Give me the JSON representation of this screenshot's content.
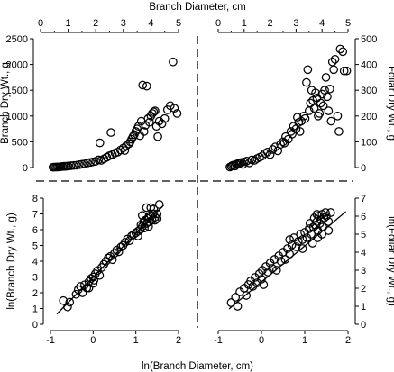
{
  "chart_data": {
    "type": "scatter",
    "top_xlabel": "Branch Diameter, cm",
    "bottom_xlabel": "ln(Branch Diameter, cm)",
    "panels": [
      {
        "id": "top_left",
        "ylabel": "Branch Dry Wt., g",
        "xlim": [
          0,
          5
        ],
        "ylim": [
          0,
          2500
        ],
        "xticks": [
          0,
          1,
          2,
          3,
          4,
          5
        ],
        "yticks": [
          0,
          500,
          1000,
          1500,
          2000,
          2500
        ],
        "points": [
          [
            0.45,
            5
          ],
          [
            0.5,
            10
          ],
          [
            0.55,
            8
          ],
          [
            0.6,
            12
          ],
          [
            0.65,
            10
          ],
          [
            0.7,
            15
          ],
          [
            0.75,
            18
          ],
          [
            0.8,
            20
          ],
          [
            0.85,
            25
          ],
          [
            0.9,
            22
          ],
          [
            0.95,
            28
          ],
          [
            1.0,
            30
          ],
          [
            1.1,
            35
          ],
          [
            1.2,
            40
          ],
          [
            1.3,
            45
          ],
          [
            1.4,
            55
          ],
          [
            1.5,
            65
          ],
          [
            1.6,
            70
          ],
          [
            1.7,
            90
          ],
          [
            1.8,
            100
          ],
          [
            1.9,
            110
          ],
          [
            2.0,
            120
          ],
          [
            2.1,
            150
          ],
          [
            2.15,
            480
          ],
          [
            2.2,
            140
          ],
          [
            2.3,
            170
          ],
          [
            2.4,
            200
          ],
          [
            2.5,
            230
          ],
          [
            2.55,
            680
          ],
          [
            2.6,
            250
          ],
          [
            2.7,
            280
          ],
          [
            2.8,
            300
          ],
          [
            2.9,
            340
          ],
          [
            3.0,
            380
          ],
          [
            3.05,
            330
          ],
          [
            3.1,
            420
          ],
          [
            3.2,
            460
          ],
          [
            3.25,
            500
          ],
          [
            3.3,
            550
          ],
          [
            3.35,
            600
          ],
          [
            3.4,
            640
          ],
          [
            3.45,
            700
          ],
          [
            3.5,
            750
          ],
          [
            3.55,
            800
          ],
          [
            3.6,
            620
          ],
          [
            3.65,
            900
          ],
          [
            3.7,
            1600
          ],
          [
            3.75,
            700
          ],
          [
            3.8,
            820
          ],
          [
            3.85,
            1580
          ],
          [
            3.9,
            950
          ],
          [
            3.95,
            880
          ],
          [
            4.0,
            1000
          ],
          [
            4.05,
            1050
          ],
          [
            4.1,
            1080
          ],
          [
            4.15,
            1100
          ],
          [
            4.2,
            800
          ],
          [
            4.25,
            600
          ],
          [
            4.3,
            900
          ],
          [
            4.4,
            850
          ],
          [
            4.5,
            950
          ],
          [
            4.6,
            1120
          ],
          [
            4.7,
            1200
          ],
          [
            4.8,
            2050
          ],
          [
            4.85,
            1150
          ],
          [
            4.95,
            1050
          ]
        ]
      },
      {
        "id": "top_right",
        "ylabel": "Foliar Dry Wt., g",
        "xlim": [
          0,
          5
        ],
        "ylim": [
          0,
          500
        ],
        "xticks": [
          0,
          1,
          2,
          3,
          4,
          5
        ],
        "yticks": [
          0,
          100,
          200,
          300,
          400,
          500
        ],
        "points": [
          [
            0.45,
            2
          ],
          [
            0.5,
            5
          ],
          [
            0.55,
            8
          ],
          [
            0.6,
            10
          ],
          [
            0.65,
            6
          ],
          [
            0.7,
            12
          ],
          [
            0.75,
            15
          ],
          [
            0.8,
            14
          ],
          [
            0.85,
            18
          ],
          [
            0.9,
            20
          ],
          [
            0.95,
            12
          ],
          [
            1.0,
            22
          ],
          [
            1.1,
            25
          ],
          [
            1.2,
            18
          ],
          [
            1.3,
            30
          ],
          [
            1.4,
            28
          ],
          [
            1.5,
            35
          ],
          [
            1.6,
            40
          ],
          [
            1.7,
            45
          ],
          [
            1.8,
            55
          ],
          [
            1.9,
            60
          ],
          [
            2.0,
            50
          ],
          [
            2.1,
            70
          ],
          [
            2.2,
            80
          ],
          [
            2.3,
            65
          ],
          [
            2.4,
            90
          ],
          [
            2.5,
            100
          ],
          [
            2.55,
            95
          ],
          [
            2.6,
            120
          ],
          [
            2.7,
            110
          ],
          [
            2.8,
            140
          ],
          [
            2.85,
            130
          ],
          [
            2.9,
            160
          ],
          [
            3.0,
            150
          ],
          [
            3.05,
            195
          ],
          [
            3.1,
            175
          ],
          [
            3.15,
            140
          ],
          [
            3.2,
            180
          ],
          [
            3.3,
            200
          ],
          [
            3.35,
            190
          ],
          [
            3.4,
            330
          ],
          [
            3.45,
            380
          ],
          [
            3.5,
            220
          ],
          [
            3.55,
            250
          ],
          [
            3.6,
            300
          ],
          [
            3.65,
            260
          ],
          [
            3.7,
            230
          ],
          [
            3.75,
            290
          ],
          [
            3.8,
            270
          ],
          [
            3.85,
            200
          ],
          [
            3.9,
            210
          ],
          [
            3.95,
            250
          ],
          [
            4.0,
            285
          ],
          [
            4.05,
            240
          ],
          [
            4.1,
            300
          ],
          [
            4.15,
            350
          ],
          [
            4.2,
            275
          ],
          [
            4.25,
            220
          ],
          [
            4.3,
            305
          ],
          [
            4.35,
            180
          ],
          [
            4.4,
            410
          ],
          [
            4.45,
            380
          ],
          [
            4.5,
            420
          ],
          [
            4.6,
            200
          ],
          [
            4.65,
            140
          ],
          [
            4.7,
            460
          ],
          [
            4.8,
            450
          ],
          [
            4.85,
            375
          ],
          [
            4.95,
            375
          ]
        ]
      },
      {
        "id": "bottom_left",
        "ylabel": "ln(Branch Dry Wt., g)",
        "xlim": [
          -1,
          2
        ],
        "ylim": [
          0,
          8
        ],
        "xticks": [
          -1,
          0,
          1,
          2
        ],
        "yticks": [
          0,
          1,
          2,
          3,
          4,
          5,
          6,
          7,
          8
        ],
        "fit_line": {
          "x": [
            -0.85,
            1.65
          ],
          "y": [
            0.65,
            7.55
          ]
        },
        "points": [
          [
            -0.7,
            1.5
          ],
          [
            -0.6,
            1.1
          ],
          [
            -0.55,
            1.4
          ],
          [
            -0.4,
            1.9
          ],
          [
            -0.35,
            2.2
          ],
          [
            -0.3,
            2.4
          ],
          [
            -0.25,
            2.0
          ],
          [
            -0.2,
            2.5
          ],
          [
            -0.15,
            2.3
          ],
          [
            -0.1,
            2.7
          ],
          [
            -0.05,
            2.9
          ],
          [
            0.0,
            3.0
          ],
          [
            0.02,
            2.8
          ],
          [
            0.05,
            3.2
          ],
          [
            0.1,
            3.4
          ],
          [
            0.15,
            3.1
          ],
          [
            0.2,
            3.6
          ],
          [
            0.25,
            3.8
          ],
          [
            0.3,
            4.0
          ],
          [
            0.4,
            4.3
          ],
          [
            0.45,
            4.1
          ],
          [
            0.5,
            4.5
          ],
          [
            0.55,
            4.7
          ],
          [
            0.6,
            4.6
          ],
          [
            0.65,
            4.9
          ],
          [
            0.7,
            5.0
          ],
          [
            0.75,
            5.2
          ],
          [
            0.8,
            5.4
          ],
          [
            0.85,
            5.3
          ],
          [
            0.9,
            5.6
          ],
          [
            0.95,
            5.7
          ],
          [
            1.0,
            5.8
          ],
          [
            1.05,
            5.9
          ],
          [
            1.1,
            6.0
          ],
          [
            1.12,
            6.3
          ],
          [
            1.15,
            6.2
          ],
          [
            1.18,
            6.5
          ],
          [
            1.2,
            6.1
          ],
          [
            1.22,
            6.6
          ],
          [
            1.25,
            6.4
          ],
          [
            1.28,
            6.7
          ],
          [
            1.3,
            6.8
          ],
          [
            1.32,
            6.5
          ],
          [
            1.35,
            6.9
          ],
          [
            1.38,
            6.6
          ],
          [
            1.4,
            7.0
          ],
          [
            1.42,
            7.3
          ],
          [
            1.45,
            6.8
          ],
          [
            1.5,
            7.0
          ],
          [
            1.55,
            7.6
          ],
          [
            1.25,
            7.4
          ],
          [
            1.35,
            7.4
          ],
          [
            1.15,
            6.9
          ],
          [
            1.3,
            6.2
          ],
          [
            1.45,
            6.6
          ],
          [
            0.35,
            4.2
          ],
          [
            0.0,
            2.6
          ],
          [
            -0.1,
            2.3
          ],
          [
            1.05,
            5.6
          ],
          [
            1.5,
            6.7
          ]
        ]
      },
      {
        "id": "bottom_right",
        "ylabel": "ln(Foliar Dry Wt., g)",
        "xlim": [
          -1,
          2
        ],
        "ylim": [
          0,
          7
        ],
        "xticks": [
          -1,
          0,
          1,
          2
        ],
        "yticks": [
          0,
          1,
          2,
          3,
          4,
          5,
          6,
          7
        ],
        "fit_line": {
          "x": [
            -0.75,
            1.95
          ],
          "y": [
            0.85,
            6.25
          ]
        },
        "points": [
          [
            -0.7,
            1.2
          ],
          [
            -0.6,
            1.5
          ],
          [
            -0.55,
            1.0
          ],
          [
            -0.5,
            1.8
          ],
          [
            -0.4,
            2.0
          ],
          [
            -0.35,
            1.6
          ],
          [
            -0.3,
            2.2
          ],
          [
            -0.25,
            2.4
          ],
          [
            -0.2,
            2.1
          ],
          [
            -0.15,
            2.6
          ],
          [
            -0.1,
            2.3
          ],
          [
            -0.05,
            2.8
          ],
          [
            0.0,
            2.5
          ],
          [
            0.02,
            3.0
          ],
          [
            0.05,
            2.2
          ],
          [
            0.1,
            3.2
          ],
          [
            0.15,
            2.9
          ],
          [
            0.2,
            3.4
          ],
          [
            0.25,
            3.1
          ],
          [
            0.3,
            3.6
          ],
          [
            0.35,
            3.0
          ],
          [
            0.4,
            3.8
          ],
          [
            0.45,
            3.5
          ],
          [
            0.5,
            4.0
          ],
          [
            0.55,
            3.6
          ],
          [
            0.6,
            4.2
          ],
          [
            0.65,
            3.9
          ],
          [
            0.7,
            4.4
          ],
          [
            0.75,
            4.8
          ],
          [
            0.8,
            4.3
          ],
          [
            0.85,
            4.6
          ],
          [
            0.9,
            5.0
          ],
          [
            0.95,
            4.2
          ],
          [
            1.0,
            5.1
          ],
          [
            1.05,
            4.8
          ],
          [
            1.1,
            5.3
          ],
          [
            1.12,
            5.6
          ],
          [
            1.15,
            5.0
          ],
          [
            1.2,
            5.4
          ],
          [
            1.22,
            5.9
          ],
          [
            1.25,
            5.5
          ],
          [
            1.28,
            5.7
          ],
          [
            1.3,
            5.2
          ],
          [
            1.32,
            6.0
          ],
          [
            1.35,
            5.6
          ],
          [
            1.38,
            5.8
          ],
          [
            1.4,
            6.1
          ],
          [
            1.42,
            5.4
          ],
          [
            1.45,
            5.9
          ],
          [
            1.5,
            6.0
          ],
          [
            1.55,
            5.7
          ],
          [
            1.6,
            6.2
          ],
          [
            1.28,
            6.1
          ],
          [
            1.4,
            5.0
          ],
          [
            1.48,
            6.2
          ],
          [
            0.95,
            4.7
          ],
          [
            1.18,
            4.5
          ],
          [
            1.3,
            4.8
          ],
          [
            1.55,
            5.2
          ],
          [
            0.65,
            4.7
          ]
        ]
      }
    ]
  }
}
